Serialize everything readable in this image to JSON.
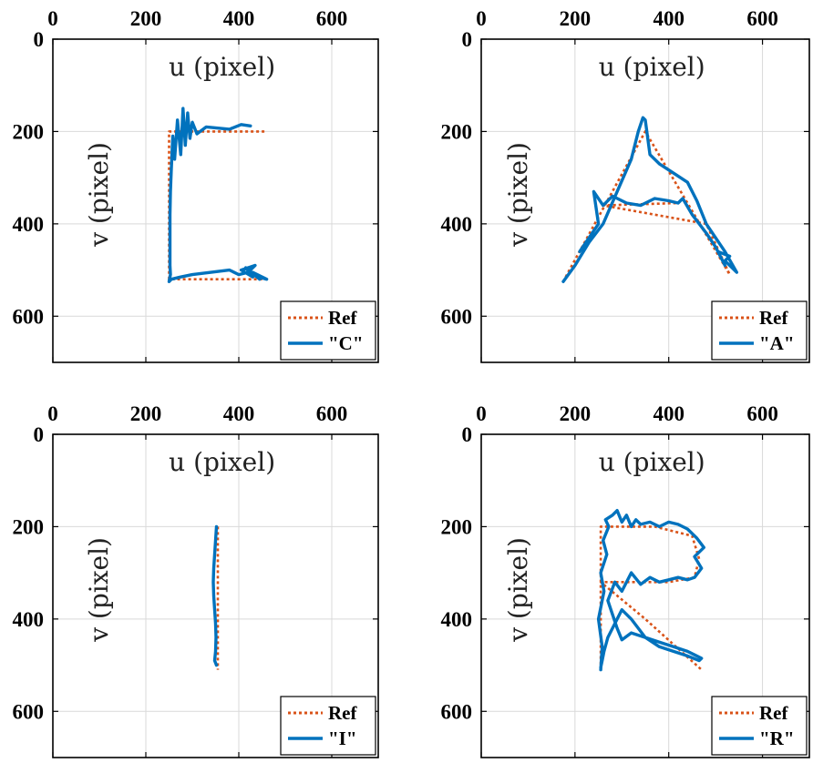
{
  "chart_data": [
    {
      "type": "line",
      "id": "C",
      "xlabel": "u (pixel)",
      "ylabel": "v (pixel)",
      "xlim": [
        0,
        700
      ],
      "ylim": [
        0,
        700
      ],
      "xticks": [
        "0",
        "200",
        "400",
        "600"
      ],
      "yticks": [
        "0",
        "200",
        "400",
        "600"
      ],
      "legend": {
        "position": "bottom-right",
        "labels": [
          "Ref",
          "\"C\""
        ]
      },
      "series": [
        {
          "name": "Ref",
          "style": "dotted",
          "x": [
            455,
            350,
            250,
            250,
            250,
            350,
            455
          ],
          "y": [
            200,
            200,
            200,
            360,
            520,
            520,
            520
          ]
        },
        {
          "name": "\"C\"",
          "style": "solid",
          "x": [
            425,
            405,
            380,
            330,
            310,
            300,
            295,
            290,
            285,
            280,
            275,
            268,
            262,
            258,
            255,
            253,
            252,
            252,
            252,
            252,
            253,
            250,
            255,
            275,
            300,
            340,
            380,
            400,
            420,
            435,
            405,
            430,
            415,
            445,
            430,
            460,
            425
          ],
          "y": [
            188,
            185,
            195,
            190,
            205,
            180,
            215,
            160,
            230,
            150,
            250,
            175,
            260,
            210,
            280,
            330,
            380,
            420,
            460,
            490,
            510,
            525,
            520,
            515,
            510,
            505,
            500,
            510,
            505,
            490,
            500,
            515,
            495,
            520,
            505,
            520,
            510
          ]
        }
      ]
    },
    {
      "type": "line",
      "id": "A",
      "xlabel": "u (pixel)",
      "ylabel": "v (pixel)",
      "xlim": [
        0,
        700
      ],
      "ylim": [
        0,
        700
      ],
      "xticks": [
        "0",
        "200",
        "400",
        "600"
      ],
      "yticks": [
        "0",
        "200",
        "400",
        "600"
      ],
      "legend": {
        "position": "bottom-right",
        "labels": [
          "Ref",
          "\"A\""
        ]
      },
      "series": [
        {
          "name": "Ref",
          "style": "dotted",
          "x": [
            180,
            350,
            530,
            480,
            260,
            420
          ],
          "y": [
            515,
            200,
            510,
            400,
            360,
            355
          ]
        },
        {
          "name": "\"A\"",
          "style": "solid",
          "x": [
            175,
            200,
            230,
            260,
            290,
            320,
            335,
            345,
            350,
            360,
            380,
            410,
            440,
            460,
            480,
            500,
            520,
            545,
            520,
            530,
            505,
            520,
            500,
            480,
            450,
            430,
            420,
            400,
            370,
            340,
            310,
            280,
            260,
            240,
            250,
            210
          ],
          "y": [
            525,
            490,
            440,
            400,
            330,
            260,
            200,
            170,
            175,
            250,
            270,
            290,
            310,
            350,
            400,
            430,
            460,
            505,
            480,
            470,
            460,
            490,
            450,
            420,
            380,
            345,
            355,
            350,
            345,
            360,
            355,
            340,
            360,
            330,
            400,
            460
          ]
        }
      ]
    },
    {
      "type": "line",
      "id": "I",
      "xlabel": "u (pixel)",
      "ylabel": "v (pixel)",
      "xlim": [
        0,
        700
      ],
      "ylim": [
        0,
        700
      ],
      "xticks": [
        "0",
        "200",
        "400",
        "600"
      ],
      "yticks": [
        "0",
        "200",
        "400",
        "600"
      ],
      "legend": {
        "position": "bottom-right",
        "labels": [
          "Ref",
          "\"I\""
        ]
      },
      "series": [
        {
          "name": "Ref",
          "style": "dotted",
          "x": [
            355,
            355
          ],
          "y": [
            200,
            510
          ]
        },
        {
          "name": "\"I\"",
          "style": "solid",
          "x": [
            352,
            350,
            348,
            346,
            345,
            346,
            348,
            350,
            351,
            350,
            348,
            352
          ],
          "y": [
            200,
            230,
            260,
            290,
            320,
            350,
            380,
            410,
            440,
            470,
            490,
            500
          ]
        }
      ]
    },
    {
      "type": "line",
      "id": "R",
      "xlabel": "u (pixel)",
      "ylabel": "v (pixel)",
      "xlim": [
        0,
        700
      ],
      "ylim": [
        0,
        700
      ],
      "xticks": [
        "0",
        "200",
        "400",
        "600"
      ],
      "yticks": [
        "0",
        "200",
        "400",
        "600"
      ],
      "legend": {
        "position": "bottom-right",
        "labels": [
          "Ref",
          "\"R\""
        ]
      },
      "series": [
        {
          "name": "Ref",
          "style": "dotted",
          "x": [
            255,
            255,
            370,
            450,
            465,
            455,
            400,
            255,
            350,
            470
          ],
          "y": [
            510,
            200,
            200,
            220,
            270,
            310,
            320,
            320,
            400,
            510
          ]
        },
        {
          "name": "\"R\"",
          "style": "solid",
          "x": [
            255,
            258,
            250,
            262,
            255,
            268,
            260,
            272,
            265,
            280,
            290,
            300,
            310,
            320,
            330,
            340,
            360,
            380,
            400,
            420,
            440,
            460,
            475,
            455,
            470,
            455,
            440,
            420,
            400,
            380,
            360,
            340,
            320,
            300,
            285,
            270,
            280,
            290,
            300,
            320,
            350,
            380,
            410,
            440,
            465,
            470,
            440,
            410,
            380,
            350,
            320,
            300,
            285,
            270,
            262,
            258,
            255
          ],
          "y": [
            510,
            460,
            400,
            340,
            300,
            260,
            230,
            200,
            185,
            175,
            165,
            190,
            175,
            200,
            185,
            195,
            190,
            200,
            190,
            195,
            205,
            225,
            245,
            265,
            290,
            310,
            315,
            310,
            315,
            320,
            310,
            325,
            300,
            340,
            320,
            360,
            390,
            420,
            445,
            430,
            440,
            460,
            470,
            480,
            490,
            485,
            470,
            460,
            450,
            440,
            400,
            380,
            410,
            440,
            470,
            490,
            505
          ]
        }
      ]
    }
  ],
  "colors": {
    "ref": "#d95319",
    "traj": "#0072bd",
    "axis": "#000000",
    "grid": "#d9d9d9"
  }
}
